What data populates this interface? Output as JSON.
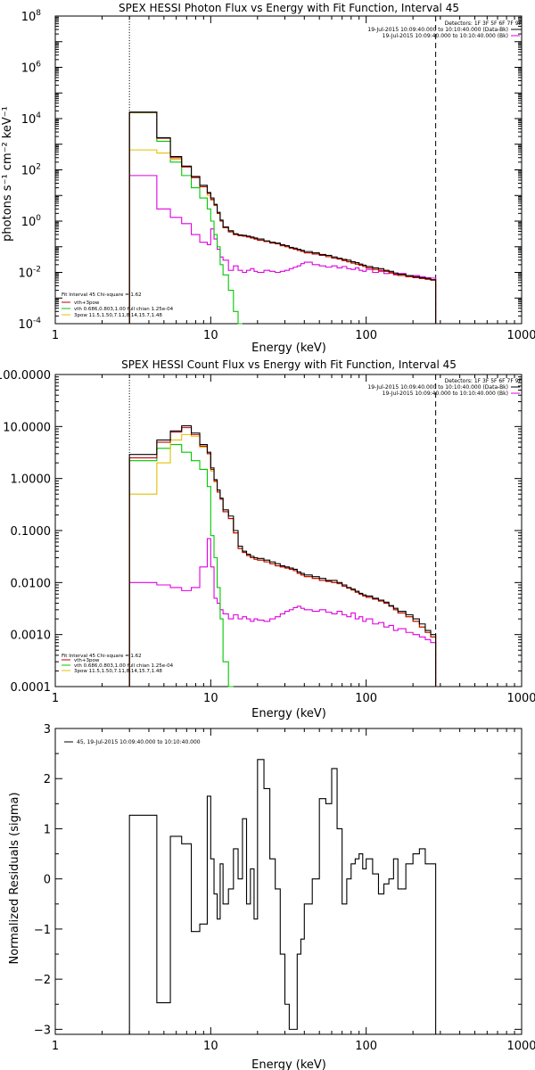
{
  "colors": {
    "data": "#000000",
    "total": "#c00000",
    "thermal": "#00c800",
    "power": "#e0c000",
    "background": "#e000e0"
  },
  "chart_data": [
    {
      "type": "line",
      "title": "SPEX HESSI Photon Flux vs Energy with Fit Function, Interval 45",
      "xlabel": "Energy (keV)",
      "ylabel": "photons s⁻¹ cm⁻² keV⁻¹",
      "xscale": "log",
      "yscale": "log",
      "xlim": [
        1,
        1000
      ],
      "ylim": [
        0.0001,
        100000000
      ],
      "xticks": [
        {
          "v": 1,
          "label": "1"
        },
        {
          "v": 10,
          "label": "10"
        },
        {
          "v": 100,
          "label": "100"
        },
        {
          "v": 1000,
          "label": "1000"
        }
      ],
      "yticks": [
        {
          "v": 0.0001,
          "label": "10",
          "exp": "-4"
        },
        {
          "v": 0.01,
          "label": "10",
          "exp": "-2"
        },
        {
          "v": 1,
          "label": "10",
          "exp": "0"
        },
        {
          "v": 100,
          "label": "10",
          "exp": "2"
        },
        {
          "v": 10000,
          "label": "10",
          "exp": "4"
        },
        {
          "v": 1000000,
          "label": "10",
          "exp": "6"
        },
        {
          "v": 100000000,
          "label": "10",
          "exp": "8"
        }
      ],
      "vlines": [
        {
          "x": 3,
          "style": "dotted"
        },
        {
          "x": 280,
          "style": "dashed"
        }
      ],
      "info_right": [
        "Detectors: 1F 3F 5F 6F 7F 9F",
        "19-Jul-2015 10:09:40.000 to 10:10:40.000 (Data-Bk)",
        "19-Jul-2015 10:09:40.000 to 10:10:40.000 (Bk)"
      ],
      "info_left": [
        "Fit Interval 45   Chi-square = 1.62",
        "vth+3pow",
        "vth 0.686,0.803,1.00  full chian 1.25e-04",
        "3pow 11.5,1.50,7.11,8.14,15.7,1.48"
      ],
      "edges": [
        3,
        3.5,
        4,
        4.5,
        5,
        5.5,
        6,
        6.5,
        7,
        7.5,
        8,
        8.5,
        9,
        9.5,
        10,
        10.5,
        11,
        11.5,
        12,
        13,
        14,
        15,
        16,
        17,
        18,
        19,
        20,
        22,
        24,
        26,
        28,
        30,
        32,
        34,
        36,
        38,
        40,
        45,
        50,
        55,
        60,
        65,
        70,
        75,
        80,
        85,
        90,
        95,
        100,
        110,
        120,
        130,
        140,
        150,
        160,
        180,
        200,
        220,
        240,
        260,
        280
      ],
      "series": [
        {
          "key": "data",
          "values": [
            18000,
            18000,
            18000,
            1800,
            1800,
            330,
            330,
            140,
            140,
            55,
            55,
            25,
            25,
            13,
            8,
            4.5,
            2.2,
            1.1,
            0.6,
            0.42,
            0.32,
            0.29,
            0.28,
            0.26,
            0.24,
            0.22,
            0.2,
            0.17,
            0.15,
            0.14,
            0.12,
            0.11,
            0.095,
            0.088,
            0.08,
            0.072,
            0.065,
            0.058,
            0.05,
            0.046,
            0.04,
            0.036,
            0.032,
            0.03,
            0.026,
            0.024,
            0.021,
            0.019,
            0.017,
            0.015,
            0.014,
            0.012,
            0.011,
            0.0095,
            0.0085,
            0.0075,
            0.0068,
            0.0062,
            0.0058,
            0.0052
          ]
        },
        {
          "key": "total",
          "values": [
            17500,
            17500,
            17500,
            1700,
            1700,
            300,
            300,
            130,
            130,
            50,
            50,
            22,
            22,
            12,
            7,
            4.2,
            2.0,
            1.0,
            0.55,
            0.38,
            0.3,
            0.27,
            0.26,
            0.24,
            0.22,
            0.2,
            0.18,
            0.16,
            0.14,
            0.13,
            0.11,
            0.1,
            0.088,
            0.08,
            0.072,
            0.066,
            0.058,
            0.052,
            0.046,
            0.041,
            0.036,
            0.033,
            0.029,
            0.026,
            0.023,
            0.021,
            0.019,
            0.017,
            0.015,
            0.013,
            0.012,
            0.011,
            0.0095,
            0.0085,
            0.0076,
            0.0068,
            0.0062,
            0.0058,
            0.0054,
            0.005
          ]
        },
        {
          "key": "thermal",
          "values": [
            17000,
            17000,
            17000,
            1300,
            1300,
            200,
            200,
            60,
            60,
            20,
            20,
            8,
            8,
            3,
            1.0,
            0.3,
            0.1,
            0.02,
            0.008,
            0.002,
            0.0003,
            5e-05
          ]
        },
        {
          "key": "power",
          "values": [
            600,
            600,
            600,
            450,
            450,
            260,
            260,
            130,
            130,
            55,
            55,
            22,
            22,
            10,
            6.5,
            4.0,
            2.0,
            1.0,
            0.55,
            0.38,
            0.3,
            0.27,
            0.26,
            0.24,
            0.22,
            0.2,
            0.18,
            0.16,
            0.14,
            0.13,
            0.11,
            0.1,
            0.088,
            0.08,
            0.072,
            0.066,
            0.058,
            0.052,
            0.046,
            0.041,
            0.036,
            0.033,
            0.029,
            0.026,
            0.023,
            0.021,
            0.019,
            0.017,
            0.015,
            0.013,
            0.012,
            0.011,
            0.0095,
            0.0085,
            0.0076,
            0.0068,
            0.0062,
            0.0058,
            0.0054,
            0.005
          ]
        },
        {
          "key": "background",
          "values": [
            60,
            60,
            60,
            3,
            3,
            1.4,
            1.4,
            0.8,
            0.8,
            0.3,
            0.3,
            0.15,
            0.15,
            0.12,
            0.5,
            0.2,
            0.08,
            0.04,
            0.03,
            0.012,
            0.018,
            0.012,
            0.01,
            0.012,
            0.014,
            0.011,
            0.01,
            0.012,
            0.011,
            0.01,
            0.011,
            0.012,
            0.014,
            0.016,
            0.018,
            0.022,
            0.025,
            0.02,
            0.018,
            0.016,
            0.018,
            0.015,
            0.017,
            0.014,
            0.013,
            0.015,
            0.012,
            0.011,
            0.013,
            0.01,
            0.011,
            0.009,
            0.01,
            0.008,
            0.009,
            0.007,
            0.0075,
            0.0068,
            0.0062,
            0.006
          ]
        }
      ]
    },
    {
      "type": "line",
      "title": "SPEX HESSI Count Flux vs Energy with Fit Function, Interval 45",
      "xlabel": "Energy (keV)",
      "ylabel": "",
      "xscale": "log",
      "yscale": "log",
      "xlim": [
        1,
        1000
      ],
      "ylim": [
        0.0001,
        100
      ],
      "xticks": [
        {
          "v": 1,
          "label": "1"
        },
        {
          "v": 10,
          "label": "10"
        },
        {
          "v": 100,
          "label": "100"
        },
        {
          "v": 1000,
          "label": "1000"
        }
      ],
      "yticks": [
        {
          "v": 0.0001,
          "label": "0.0001"
        },
        {
          "v": 0.001,
          "label": "0.0010"
        },
        {
          "v": 0.01,
          "label": "0.0100"
        },
        {
          "v": 0.1,
          "label": "0.1000"
        },
        {
          "v": 1,
          "label": "1.0000"
        },
        {
          "v": 10,
          "label": "10.0000"
        },
        {
          "v": 100,
          "label": "100.0000"
        }
      ],
      "vlines": [
        {
          "x": 3,
          "style": "dotted"
        },
        {
          "x": 280,
          "style": "dashed"
        }
      ],
      "info_right": [
        "Detectors: 1F 3F 5F 6F 7F 9F",
        "19-Jul-2015 10:09:40.000 to 10:10:40.000 (Data-Bk)",
        "19-Jul-2015 10:09:40.000 to 10:10:40.000 (Bk)"
      ],
      "info_left": [
        "Fit Interval 45   Chi-square = 1.62",
        "vth+3pow",
        "vth 0.686,0.803,1.00  full chian 1.25e-04",
        "3pow 11.5,1.50,7.11,8.14,15.7,1.48"
      ],
      "edges": [
        3,
        3.5,
        4,
        4.5,
        5,
        5.5,
        6,
        6.5,
        7,
        7.5,
        8,
        8.5,
        9,
        9.5,
        10,
        10.5,
        11,
        11.5,
        12,
        13,
        14,
        15,
        16,
        17,
        18,
        19,
        20,
        22,
        24,
        26,
        28,
        30,
        32,
        34,
        36,
        38,
        40,
        45,
        50,
        55,
        60,
        65,
        70,
        75,
        80,
        85,
        90,
        95,
        100,
        110,
        120,
        130,
        140,
        150,
        160,
        180,
        200,
        220,
        240,
        260,
        280
      ],
      "series": [
        {
          "key": "data",
          "values": [
            2.9,
            2.9,
            2.9,
            5.5,
            5.5,
            8.2,
            8.2,
            10.3,
            10.3,
            7.5,
            7.5,
            4.5,
            4.5,
            3.2,
            1.6,
            0.95,
            0.6,
            0.42,
            0.25,
            0.19,
            0.1,
            0.05,
            0.04,
            0.035,
            0.032,
            0.03,
            0.029,
            0.027,
            0.025,
            0.023,
            0.021,
            0.02,
            0.019,
            0.018,
            0.016,
            0.015,
            0.014,
            0.013,
            0.012,
            0.011,
            0.011,
            0.01,
            0.009,
            0.008,
            0.0075,
            0.0068,
            0.0062,
            0.0058,
            0.0055,
            0.005,
            0.0046,
            0.0042,
            0.0036,
            0.0032,
            0.0028,
            0.0024,
            0.002,
            0.0016,
            0.0012,
            0.001
          ]
        },
        {
          "key": "total",
          "values": [
            2.5,
            2.5,
            2.5,
            5.0,
            5.0,
            7.8,
            7.8,
            9.5,
            9.5,
            7.0,
            7.0,
            4.2,
            4.2,
            3.0,
            1.5,
            0.9,
            0.55,
            0.4,
            0.23,
            0.17,
            0.09,
            0.045,
            0.038,
            0.033,
            0.03,
            0.028,
            0.027,
            0.025,
            0.023,
            0.021,
            0.02,
            0.019,
            0.018,
            0.017,
            0.015,
            0.014,
            0.013,
            0.012,
            0.011,
            0.0105,
            0.01,
            0.0095,
            0.0085,
            0.0078,
            0.0072,
            0.0065,
            0.006,
            0.0055,
            0.0052,
            0.0048,
            0.0044,
            0.004,
            0.0035,
            0.003,
            0.0026,
            0.0022,
            0.0018,
            0.0014,
            0.0011,
            0.0009
          ]
        },
        {
          "key": "thermal",
          "values": [
            2.2,
            2.2,
            2.2,
            3.8,
            3.8,
            4.5,
            4.5,
            3.2,
            3.2,
            2.2,
            2.2,
            1.5,
            1.5,
            0.7,
            0.08,
            0.03,
            0.008,
            0.002,
            0.0003,
            5e-05
          ]
        },
        {
          "key": "power",
          "values": [
            0.5,
            0.5,
            0.5,
            2.0,
            2.0,
            5.5,
            5.5,
            7.0,
            7.0,
            6.5,
            6.5,
            4.0,
            4.0,
            3.0,
            1.4,
            0.85,
            0.55,
            0.4,
            0.23,
            0.17,
            0.09,
            0.045,
            0.038,
            0.033,
            0.03,
            0.028,
            0.027,
            0.025,
            0.023,
            0.021,
            0.02,
            0.019,
            0.018,
            0.017,
            0.015,
            0.014,
            0.013,
            0.012,
            0.011,
            0.0105,
            0.01,
            0.0095,
            0.0085,
            0.0078,
            0.0072,
            0.0065,
            0.006,
            0.0055,
            0.0052,
            0.0048,
            0.0044,
            0.004,
            0.0035,
            0.003,
            0.0026,
            0.0022,
            0.0018,
            0.0014,
            0.0011,
            0.0009
          ]
        },
        {
          "key": "background",
          "values": [
            0.01,
            0.01,
            0.01,
            0.009,
            0.009,
            0.008,
            0.008,
            0.007,
            0.007,
            0.008,
            0.008,
            0.02,
            0.02,
            0.07,
            0.02,
            0.005,
            0.004,
            0.003,
            0.0025,
            0.002,
            0.0024,
            0.002,
            0.0022,
            0.002,
            0.0018,
            0.002,
            0.0019,
            0.0018,
            0.002,
            0.0022,
            0.0025,
            0.0028,
            0.003,
            0.0033,
            0.0035,
            0.0032,
            0.003,
            0.0028,
            0.003,
            0.0027,
            0.0025,
            0.0028,
            0.0024,
            0.0022,
            0.0026,
            0.002,
            0.0022,
            0.0018,
            0.002,
            0.0016,
            0.0017,
            0.0014,
            0.0015,
            0.0012,
            0.0013,
            0.0011,
            0.001,
            0.0009,
            0.0008,
            0.0007
          ]
        }
      ]
    },
    {
      "type": "line",
      "title": "",
      "xlabel": "Energy (keV)",
      "ylabel": "Normalized Residuals (sigma)",
      "xscale": "log",
      "yscale": "linear",
      "xlim": [
        1,
        1000
      ],
      "ylim": [
        -3.1,
        3
      ],
      "xticks": [
        {
          "v": 1,
          "label": "1"
        },
        {
          "v": 10,
          "label": "10"
        },
        {
          "v": 100,
          "label": "100"
        },
        {
          "v": 1000,
          "label": "1000"
        }
      ],
      "yticks": [
        {
          "v": -3,
          "label": "−3"
        },
        {
          "v": -2,
          "label": "−2"
        },
        {
          "v": -1,
          "label": "−1"
        },
        {
          "v": 0,
          "label": "0"
        },
        {
          "v": 1,
          "label": "1"
        },
        {
          "v": 2,
          "label": "2"
        },
        {
          "v": 3,
          "label": "3"
        }
      ],
      "legend": "45, 19-Jul-2015 10:09:40.000 to 10:10:40.000",
      "edges": [
        3,
        3.5,
        4,
        4.5,
        5,
        5.5,
        6,
        6.5,
        7,
        7.5,
        8,
        8.5,
        9,
        9.5,
        10,
        10.5,
        11,
        11.5,
        12,
        13,
        14,
        15,
        16,
        17,
        18,
        19,
        20,
        22,
        24,
        26,
        28,
        30,
        32,
        34,
        36,
        38,
        40,
        45,
        50,
        55,
        60,
        65,
        70,
        75,
        80,
        85,
        90,
        95,
        100,
        110,
        120,
        130,
        140,
        150,
        160,
        180,
        200,
        220,
        240,
        260,
        280
      ],
      "residuals": [
        1.27,
        1.27,
        1.27,
        -2.47,
        -2.47,
        0.85,
        0.85,
        0.7,
        0.7,
        -1.05,
        -1.05,
        -0.9,
        -0.9,
        1.65,
        0.4,
        -0.3,
        -0.8,
        0.3,
        -0.5,
        -0.2,
        0.6,
        0.0,
        1.2,
        -0.5,
        0.2,
        -0.8,
        2.38,
        1.8,
        0.4,
        -0.2,
        -1.5,
        -2.5,
        -3.0,
        -3.0,
        -1.5,
        -1.2,
        -0.5,
        0.0,
        1.6,
        1.5,
        2.2,
        1.0,
        -0.5,
        0.0,
        0.3,
        0.4,
        0.5,
        0.2,
        0.4,
        0.1,
        -0.3,
        -0.1,
        0.0,
        0.4,
        -0.2,
        0.3,
        0.5,
        0.6,
        0.3,
        0.3
      ]
    }
  ]
}
